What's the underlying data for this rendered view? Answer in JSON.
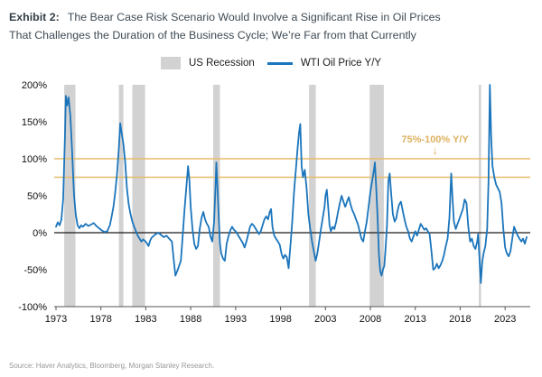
{
  "header": {
    "exhibit_label": "Exhibit 2:",
    "title_line1": "The Bear Case Risk Scenario Would Involve a Significant Rise in Oil Prices",
    "title_line2": "That Challenges the Duration of the Business Cycle; We’re Far from that Currently"
  },
  "legend": [
    {
      "label": "US Recession",
      "type": "band",
      "color": "#d2d2d2"
    },
    {
      "label": "WTI Oil Price Y/Y",
      "type": "line",
      "color": "#1b75bc"
    }
  ],
  "source": "Source: Haver Analytics, Bloomberg, Morgan Stanley Research.",
  "chart_data": {
    "type": "line",
    "title": "WTI Oil Price Y/Y vs US Recessions",
    "xlabel": "",
    "ylabel": "",
    "x_domain": [
      1972.8,
      2025.8
    ],
    "ylim": [
      -100,
      200
    ],
    "grid": false,
    "legend_position": "top",
    "y_ticks": [
      {
        "v": 200,
        "label": "200%"
      },
      {
        "v": 150,
        "label": "150%"
      },
      {
        "v": 100,
        "label": "100%"
      },
      {
        "v": 50,
        "label": "50%"
      },
      {
        "v": 0,
        "label": "0%"
      },
      {
        "v": -50,
        "label": "-50%"
      },
      {
        "v": -100,
        "label": "-100%"
      }
    ],
    "x_ticks": [
      {
        "v": 1973,
        "label": "1973"
      },
      {
        "v": 1978,
        "label": "1978"
      },
      {
        "v": 1983,
        "label": "1983"
      },
      {
        "v": 1988,
        "label": "1988"
      },
      {
        "v": 1993,
        "label": "1993"
      },
      {
        "v": 1998,
        "label": "1998"
      },
      {
        "v": 2003,
        "label": "2003"
      },
      {
        "v": 2008,
        "label": "2008"
      },
      {
        "v": 2013,
        "label": "2013"
      },
      {
        "v": 2018,
        "label": "2018"
      },
      {
        "v": 2023,
        "label": "2023"
      }
    ],
    "reference_lines": [
      {
        "y": 100,
        "color": "#e5bc6a"
      },
      {
        "y": 75,
        "color": "#e5bc6a"
      }
    ],
    "zero_line": {
      "y": 0,
      "color": "#1a1a1a"
    },
    "recession_color": "#d2d2d2",
    "recessions": [
      [
        1973.92,
        1975.17
      ],
      [
        1980.0,
        1980.5
      ],
      [
        1981.5,
        1982.92
      ],
      [
        1990.5,
        1991.25
      ],
      [
        2001.17,
        2001.92
      ],
      [
        2007.92,
        2009.5
      ],
      [
        2020.08,
        2020.33
      ]
    ],
    "annotation": {
      "text": "75%-100% Y/Y",
      "x": 2015.2,
      "text_y": 122,
      "arrow": "↓",
      "arrow_y": 106,
      "color": "#dfb260"
    },
    "series": [
      {
        "name": "WTI Oil Price Y/Y",
        "color": "#1b75bc",
        "points": [
          [
            1973.0,
            8
          ],
          [
            1973.2,
            14
          ],
          [
            1973.4,
            10
          ],
          [
            1973.6,
            18
          ],
          [
            1973.8,
            45
          ],
          [
            1974.0,
            130
          ],
          [
            1974.1,
            185
          ],
          [
            1974.25,
            172
          ],
          [
            1974.4,
            183
          ],
          [
            1974.6,
            158
          ],
          [
            1974.8,
            108
          ],
          [
            1975.0,
            52
          ],
          [
            1975.2,
            24
          ],
          [
            1975.4,
            10
          ],
          [
            1975.6,
            6
          ],
          [
            1975.8,
            10
          ],
          [
            1976.0,
            8
          ],
          [
            1976.3,
            12
          ],
          [
            1976.6,
            9
          ],
          [
            1976.9,
            11
          ],
          [
            1977.2,
            13
          ],
          [
            1977.5,
            9
          ],
          [
            1977.8,
            6
          ],
          [
            1978.1,
            3
          ],
          [
            1978.4,
            1
          ],
          [
            1978.7,
            2
          ],
          [
            1979.0,
            10
          ],
          [
            1979.2,
            22
          ],
          [
            1979.4,
            35
          ],
          [
            1979.6,
            55
          ],
          [
            1979.8,
            80
          ],
          [
            1980.0,
            115
          ],
          [
            1980.15,
            148
          ],
          [
            1980.3,
            135
          ],
          [
            1980.5,
            120
          ],
          [
            1980.7,
            95
          ],
          [
            1980.9,
            60
          ],
          [
            1981.1,
            38
          ],
          [
            1981.3,
            25
          ],
          [
            1981.5,
            15
          ],
          [
            1981.7,
            8
          ],
          [
            1981.9,
            2
          ],
          [
            1982.1,
            -4
          ],
          [
            1982.3,
            -8
          ],
          [
            1982.5,
            -12
          ],
          [
            1982.7,
            -9
          ],
          [
            1982.9,
            -11
          ],
          [
            1983.1,
            -14
          ],
          [
            1983.3,
            -18
          ],
          [
            1983.5,
            -10
          ],
          [
            1983.7,
            -6
          ],
          [
            1983.9,
            -4
          ],
          [
            1984.1,
            -2
          ],
          [
            1984.4,
            0
          ],
          [
            1984.7,
            -3
          ],
          [
            1985.0,
            -6
          ],
          [
            1985.3,
            -4
          ],
          [
            1985.6,
            -8
          ],
          [
            1985.9,
            -12
          ],
          [
            1986.1,
            -35
          ],
          [
            1986.3,
            -58
          ],
          [
            1986.5,
            -52
          ],
          [
            1986.7,
            -45
          ],
          [
            1986.9,
            -38
          ],
          [
            1987.1,
            -5
          ],
          [
            1987.3,
            30
          ],
          [
            1987.5,
            60
          ],
          [
            1987.7,
            90
          ],
          [
            1987.85,
            72
          ],
          [
            1988.0,
            35
          ],
          [
            1988.2,
            5
          ],
          [
            1988.4,
            -15
          ],
          [
            1988.6,
            -22
          ],
          [
            1988.8,
            -18
          ],
          [
            1989.0,
            5
          ],
          [
            1989.2,
            20
          ],
          [
            1989.4,
            28
          ],
          [
            1989.6,
            18
          ],
          [
            1989.8,
            12
          ],
          [
            1990.0,
            8
          ],
          [
            1990.2,
            -5
          ],
          [
            1990.4,
            -12
          ],
          [
            1990.6,
            15
          ],
          [
            1990.75,
            60
          ],
          [
            1990.85,
            95
          ],
          [
            1991.0,
            55
          ],
          [
            1991.1,
            25
          ],
          [
            1991.25,
            -15
          ],
          [
            1991.4,
            -28
          ],
          [
            1991.6,
            -35
          ],
          [
            1991.8,
            -38
          ],
          [
            1992.0,
            -15
          ],
          [
            1992.2,
            -5
          ],
          [
            1992.4,
            3
          ],
          [
            1992.6,
            8
          ],
          [
            1992.8,
            4
          ],
          [
            1993.0,
            2
          ],
          [
            1993.2,
            -2
          ],
          [
            1993.4,
            -6
          ],
          [
            1993.6,
            -10
          ],
          [
            1993.8,
            -14
          ],
          [
            1994.0,
            -20
          ],
          [
            1994.2,
            -12
          ],
          [
            1994.4,
            -2
          ],
          [
            1994.6,
            8
          ],
          [
            1994.8,
            12
          ],
          [
            1995.0,
            10
          ],
          [
            1995.2,
            6
          ],
          [
            1995.4,
            2
          ],
          [
            1995.6,
            -2
          ],
          [
            1995.8,
            2
          ],
          [
            1996.0,
            10
          ],
          [
            1996.2,
            18
          ],
          [
            1996.4,
            22
          ],
          [
            1996.6,
            18
          ],
          [
            1996.8,
            28
          ],
          [
            1996.95,
            32
          ],
          [
            1997.1,
            8
          ],
          [
            1997.3,
            -4
          ],
          [
            1997.5,
            -8
          ],
          [
            1997.7,
            -12
          ],
          [
            1997.9,
            -16
          ],
          [
            1998.1,
            -28
          ],
          [
            1998.3,
            -35
          ],
          [
            1998.5,
            -30
          ],
          [
            1998.7,
            -33
          ],
          [
            1998.9,
            -48
          ],
          [
            1999.0,
            -32
          ],
          [
            1999.15,
            -10
          ],
          [
            1999.3,
            15
          ],
          [
            1999.5,
            55
          ],
          [
            1999.7,
            85
          ],
          [
            1999.9,
            115
          ],
          [
            2000.05,
            135
          ],
          [
            2000.2,
            147
          ],
          [
            2000.35,
            90
          ],
          [
            2000.5,
            75
          ],
          [
            2000.7,
            85
          ],
          [
            2000.9,
            60
          ],
          [
            2001.1,
            25
          ],
          [
            2001.3,
            5
          ],
          [
            2001.5,
            -12
          ],
          [
            2001.7,
            -25
          ],
          [
            2001.9,
            -38
          ],
          [
            2002.1,
            -28
          ],
          [
            2002.3,
            -12
          ],
          [
            2002.5,
            5
          ],
          [
            2002.7,
            20
          ],
          [
            2002.9,
            35
          ],
          [
            2003.0,
            50
          ],
          [
            2003.15,
            58
          ],
          [
            2003.3,
            35
          ],
          [
            2003.45,
            10
          ],
          [
            2003.6,
            2
          ],
          [
            2003.8,
            8
          ],
          [
            2004.0,
            5
          ],
          [
            2004.2,
            15
          ],
          [
            2004.4,
            28
          ],
          [
            2004.6,
            40
          ],
          [
            2004.8,
            50
          ],
          [
            2005.0,
            42
          ],
          [
            2005.2,
            35
          ],
          [
            2005.4,
            42
          ],
          [
            2005.6,
            48
          ],
          [
            2005.8,
            38
          ],
          [
            2006.0,
            30
          ],
          [
            2006.2,
            25
          ],
          [
            2006.4,
            18
          ],
          [
            2006.6,
            12
          ],
          [
            2006.8,
            2
          ],
          [
            2007.0,
            -8
          ],
          [
            2007.2,
            -12
          ],
          [
            2007.4,
            2
          ],
          [
            2007.6,
            15
          ],
          [
            2007.8,
            35
          ],
          [
            2008.0,
            55
          ],
          [
            2008.2,
            70
          ],
          [
            2008.4,
            85
          ],
          [
            2008.5,
            95
          ],
          [
            2008.65,
            60
          ],
          [
            2008.8,
            20
          ],
          [
            2008.95,
            -30
          ],
          [
            2009.1,
            -52
          ],
          [
            2009.25,
            -58
          ],
          [
            2009.4,
            -50
          ],
          [
            2009.55,
            -45
          ],
          [
            2009.7,
            -20
          ],
          [
            2009.85,
            10
          ],
          [
            2010.0,
            70
          ],
          [
            2010.15,
            80
          ],
          [
            2010.3,
            55
          ],
          [
            2010.5,
            25
          ],
          [
            2010.7,
            15
          ],
          [
            2010.9,
            20
          ],
          [
            2011.0,
            28
          ],
          [
            2011.2,
            38
          ],
          [
            2011.4,
            42
          ],
          [
            2011.6,
            30
          ],
          [
            2011.8,
            18
          ],
          [
            2012.0,
            8
          ],
          [
            2012.2,
            2
          ],
          [
            2012.4,
            -8
          ],
          [
            2012.6,
            -12
          ],
          [
            2012.8,
            -5
          ],
          [
            2013.0,
            2
          ],
          [
            2013.2,
            -4
          ],
          [
            2013.4,
            4
          ],
          [
            2013.6,
            12
          ],
          [
            2013.8,
            8
          ],
          [
            2014.0,
            4
          ],
          [
            2014.2,
            6
          ],
          [
            2014.4,
            2
          ],
          [
            2014.6,
            -2
          ],
          [
            2014.8,
            -25
          ],
          [
            2015.0,
            -50
          ],
          [
            2015.2,
            -48
          ],
          [
            2015.4,
            -42
          ],
          [
            2015.6,
            -48
          ],
          [
            2015.8,
            -44
          ],
          [
            2016.0,
            -38
          ],
          [
            2016.2,
            -30
          ],
          [
            2016.4,
            -18
          ],
          [
            2016.6,
            -8
          ],
          [
            2016.8,
            20
          ],
          [
            2017.0,
            80
          ],
          [
            2017.15,
            45
          ],
          [
            2017.3,
            15
          ],
          [
            2017.5,
            5
          ],
          [
            2017.7,
            12
          ],
          [
            2017.9,
            18
          ],
          [
            2018.1,
            25
          ],
          [
            2018.3,
            32
          ],
          [
            2018.5,
            45
          ],
          [
            2018.7,
            40
          ],
          [
            2018.9,
            8
          ],
          [
            2019.1,
            -12
          ],
          [
            2019.3,
            -8
          ],
          [
            2019.5,
            -18
          ],
          [
            2019.7,
            -22
          ],
          [
            2019.9,
            -12
          ],
          [
            2020.0,
            -2
          ],
          [
            2020.15,
            -35
          ],
          [
            2020.3,
            -68
          ],
          [
            2020.45,
            -40
          ],
          [
            2020.6,
            -28
          ],
          [
            2020.8,
            -18
          ],
          [
            2021.0,
            5
          ],
          [
            2021.15,
            70
          ],
          [
            2021.3,
            200
          ],
          [
            2021.45,
            130
          ],
          [
            2021.6,
            90
          ],
          [
            2021.8,
            75
          ],
          [
            2022.0,
            65
          ],
          [
            2022.2,
            60
          ],
          [
            2022.4,
            55
          ],
          [
            2022.6,
            40
          ],
          [
            2022.8,
            5
          ],
          [
            2023.0,
            -20
          ],
          [
            2023.2,
            -28
          ],
          [
            2023.4,
            -32
          ],
          [
            2023.6,
            -25
          ],
          [
            2023.8,
            -8
          ],
          [
            2024.0,
            8
          ],
          [
            2024.2,
            2
          ],
          [
            2024.4,
            -4
          ],
          [
            2024.6,
            -8
          ],
          [
            2024.8,
            -12
          ],
          [
            2025.0,
            -8
          ],
          [
            2025.2,
            -15
          ],
          [
            2025.4,
            -6
          ]
        ]
      }
    ]
  }
}
